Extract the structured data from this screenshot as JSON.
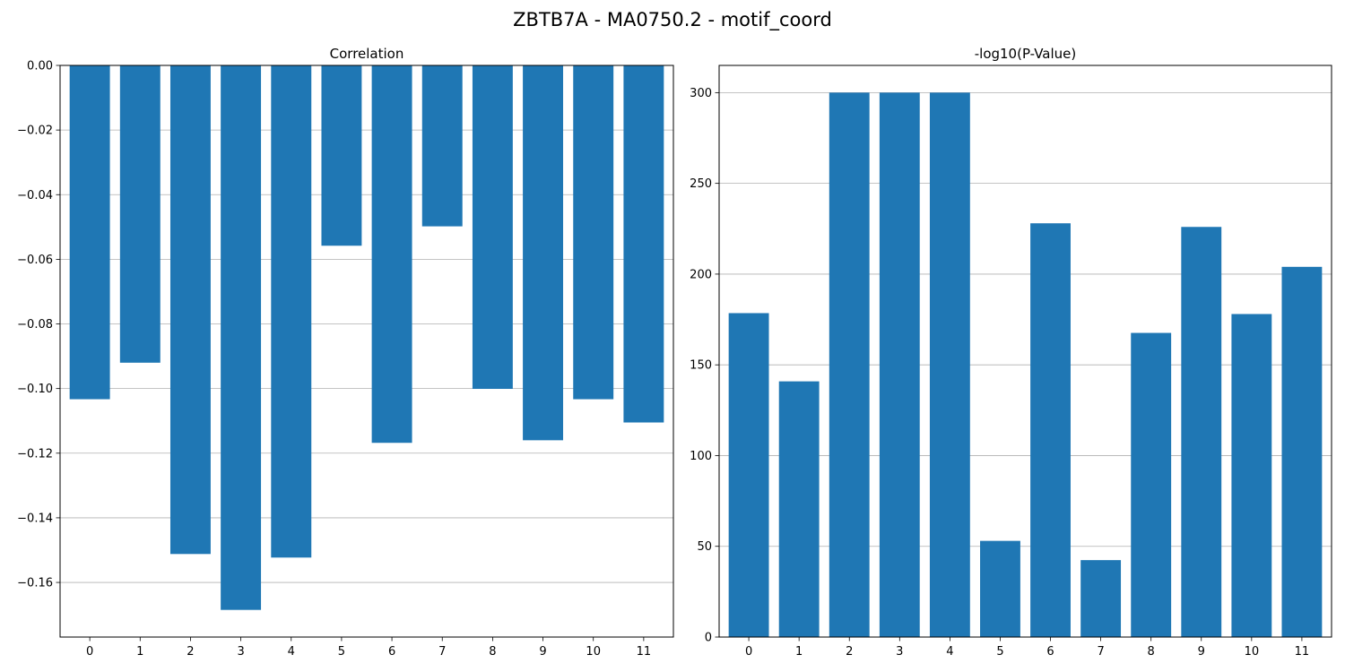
{
  "figure": {
    "title": "ZBTB7A - MA0750.2 - motif_coord"
  },
  "chart_data": [
    {
      "type": "bar",
      "title": "Correlation",
      "categories": [
        "0",
        "1",
        "2",
        "3",
        "4",
        "5",
        "6",
        "7",
        "8",
        "9",
        "10",
        "11"
      ],
      "values": [
        -0.1033,
        -0.092,
        -0.1512,
        -0.1685,
        -0.1523,
        -0.0558,
        -0.1168,
        -0.0498,
        -0.1001,
        -0.116,
        -0.1033,
        -0.1105
      ],
      "xlabel": "",
      "ylabel": "",
      "ylim": [
        -0.1769,
        0.0
      ],
      "yticks": [
        0.0,
        -0.02,
        -0.04,
        -0.06,
        -0.08,
        -0.1,
        -0.12,
        -0.14,
        -0.16
      ],
      "ytick_labels": [
        "0.00",
        "−0.02",
        "−0.04",
        "−0.06",
        "−0.08",
        "−0.10",
        "−0.12",
        "−0.14",
        "−0.16"
      ],
      "grid": "y",
      "bar_color": "#1f77b4"
    },
    {
      "type": "bar",
      "title": "-log10(P-Value)",
      "categories": [
        "0",
        "1",
        "2",
        "3",
        "4",
        "5",
        "6",
        "7",
        "8",
        "9",
        "10",
        "11"
      ],
      "values": [
        178.5,
        140.9,
        300.0,
        300.0,
        300.0,
        53.0,
        228.0,
        42.4,
        167.6,
        226.0,
        178.0,
        204.0
      ],
      "xlabel": "",
      "ylabel": "",
      "ylim": [
        0,
        315
      ],
      "yticks": [
        0,
        50,
        100,
        150,
        200,
        250,
        300
      ],
      "ytick_labels": [
        "0",
        "50",
        "100",
        "150",
        "200",
        "250",
        "300"
      ],
      "grid": "y",
      "bar_color": "#1f77b4"
    }
  ]
}
